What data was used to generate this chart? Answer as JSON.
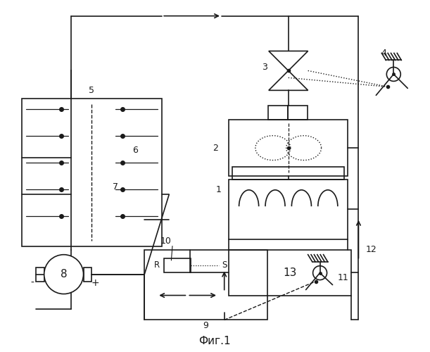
{
  "fig_label": "Фиг.1",
  "bg": "#ffffff",
  "lc": "#1a1a1a",
  "lw": 1.2,
  "fs": 9
}
